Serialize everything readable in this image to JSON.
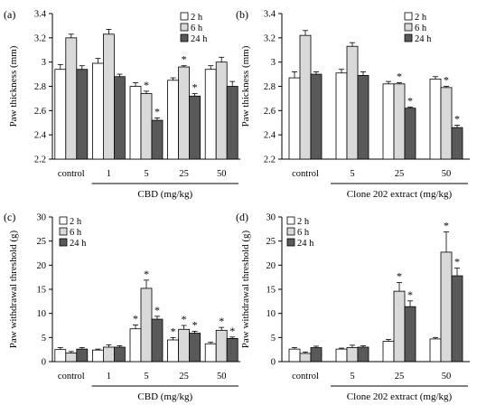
{
  "colors": {
    "series_2h": "#ffffff",
    "series_6h": "#d9d9d9",
    "series_24h": "#595959",
    "stroke": "#000000"
  },
  "chart_data": [
    {
      "panel": "(a)",
      "type": "bar",
      "xlabel": "CBD (mg/kg)",
      "ylabel": "Paw thickness (mm)",
      "ylim": [
        2.2,
        3.4
      ],
      "yticks": [
        "2.2",
        "2.4",
        "2.6",
        "2.8",
        "3",
        "3.2",
        "3.4"
      ],
      "categories": [
        "control",
        "1",
        "5",
        "25",
        "50"
      ],
      "legend_position": "top-right",
      "series": [
        {
          "name": "2 h",
          "values": [
            2.94,
            2.99,
            2.8,
            2.85,
            2.94
          ],
          "errors": [
            0.04,
            0.04,
            0.03,
            0.02,
            0.03
          ],
          "stars": [
            "",
            "",
            "",
            "",
            ""
          ]
        },
        {
          "name": "6 h",
          "values": [
            3.2,
            3.23,
            2.74,
            2.96,
            3.0
          ],
          "errors": [
            0.03,
            0.04,
            0.02,
            0.01,
            0.04
          ],
          "stars": [
            "",
            "",
            "*",
            "*",
            ""
          ]
        },
        {
          "name": "24 h",
          "values": [
            2.94,
            2.88,
            2.52,
            2.72,
            2.8
          ],
          "errors": [
            0.03,
            0.02,
            0.02,
            0.02,
            0.04
          ],
          "stars": [
            "",
            "",
            "*",
            "*",
            ""
          ]
        }
      ]
    },
    {
      "panel": "(b)",
      "type": "bar",
      "xlabel": "Clone 202 extract (mg/kg)",
      "ylabel": "Paw thickness (mm)",
      "ylim": [
        2.2,
        3.4
      ],
      "yticks": [
        "2.2",
        "2.4",
        "2.6",
        "2.8",
        "3",
        "3.2",
        "3.4"
      ],
      "categories": [
        "control",
        "5",
        "25",
        "50"
      ],
      "legend_position": "top-right",
      "series": [
        {
          "name": "2 h",
          "values": [
            2.87,
            2.91,
            2.82,
            2.86
          ],
          "errors": [
            0.05,
            0.03,
            0.02,
            0.02
          ],
          "stars": [
            "",
            "",
            "",
            ""
          ]
        },
        {
          "name": "6 h",
          "values": [
            3.22,
            3.13,
            2.82,
            2.79
          ],
          "errors": [
            0.04,
            0.03,
            0.01,
            0.01
          ],
          "stars": [
            "",
            "",
            "*",
            "*"
          ]
        },
        {
          "name": "24 h",
          "values": [
            2.9,
            2.89,
            2.62,
            2.46
          ],
          "errors": [
            0.02,
            0.03,
            0.01,
            0.02
          ],
          "stars": [
            "",
            "",
            "*",
            "*"
          ]
        }
      ]
    },
    {
      "panel": "(c)",
      "type": "bar",
      "xlabel": "CBD (mg/kg)",
      "ylabel": "Paw withdrawal threshold (g)",
      "ylim": [
        0,
        30
      ],
      "yticks": [
        "0",
        "5",
        "10",
        "15",
        "20",
        "25",
        "30"
      ],
      "categories": [
        "control",
        "1",
        "5",
        "25",
        "50"
      ],
      "legend_position": "top-left",
      "series": [
        {
          "name": "2 h",
          "values": [
            2.5,
            2.4,
            6.8,
            4.5,
            3.7
          ],
          "errors": [
            0.4,
            0.2,
            0.8,
            0.5,
            0.3
          ],
          "stars": [
            "",
            "",
            "*",
            "*",
            ""
          ]
        },
        {
          "name": "6 h",
          "values": [
            1.8,
            3.0,
            15.2,
            6.7,
            6.5
          ],
          "errors": [
            0.3,
            0.5,
            1.7,
            0.8,
            0.6
          ],
          "stars": [
            "",
            "",
            "*",
            "*",
            "*"
          ]
        },
        {
          "name": "24 h",
          "values": [
            2.6,
            3.0,
            8.8,
            5.9,
            4.8
          ],
          "errors": [
            0.3,
            0.3,
            0.6,
            0.4,
            0.3
          ],
          "stars": [
            "",
            "",
            "*",
            "*",
            "*"
          ]
        }
      ]
    },
    {
      "panel": "(d)",
      "type": "bar",
      "xlabel": "Clone 202 extract (mg/kg)",
      "ylabel": "Paw withdrawal threshold (g)",
      "ylim": [
        0,
        30
      ],
      "yticks": [
        "0",
        "5",
        "10",
        "15",
        "20",
        "25",
        "30"
      ],
      "categories": [
        "control",
        "5",
        "25",
        "50"
      ],
      "legend_position": "top-left",
      "series": [
        {
          "name": "2 h",
          "values": [
            2.6,
            2.6,
            4.2,
            4.7
          ],
          "errors": [
            0.3,
            0.2,
            0.4,
            0.3
          ],
          "stars": [
            "",
            "",
            "",
            ""
          ]
        },
        {
          "name": "6 h",
          "values": [
            1.7,
            2.9,
            14.6,
            22.7
          ],
          "errors": [
            0.3,
            0.5,
            1.8,
            4.2
          ],
          "stars": [
            "",
            "",
            "*",
            "*"
          ]
        },
        {
          "name": "24 h",
          "values": [
            2.9,
            3.0,
            11.4,
            17.8
          ],
          "errors": [
            0.3,
            0.3,
            1.2,
            1.6
          ],
          "stars": [
            "",
            "",
            "*",
            "*"
          ]
        }
      ]
    }
  ]
}
